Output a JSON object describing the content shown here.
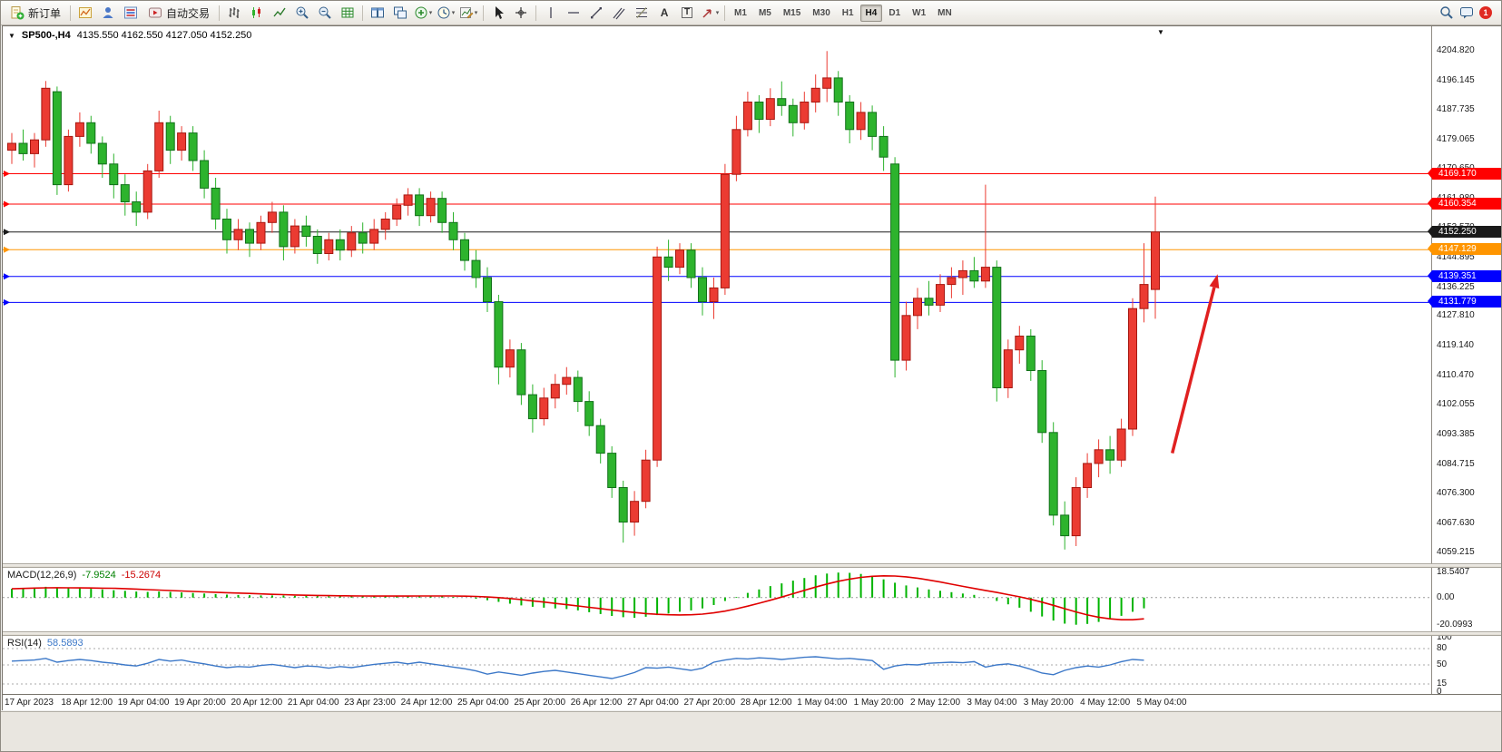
{
  "toolbar": {
    "new_order_label": "新订单",
    "auto_trading_label": "自动交易",
    "text_tool_glyph": "A",
    "label_tool_glyph": "T",
    "timeframes": [
      "M1",
      "M5",
      "M15",
      "M30",
      "H1",
      "H4",
      "D1",
      "W1",
      "MN"
    ],
    "active_timeframe": "H4",
    "notification_count": "1",
    "icon_names": [
      "new-order",
      "charts",
      "profiles",
      "market-watch",
      "auto-trading",
      "bar-chart",
      "candlestick-chart",
      "line-chart",
      "zoom-in",
      "zoom-out",
      "grid",
      "tile-windows",
      "cascade-windows",
      "indicators",
      "periods",
      "templates",
      "cursor",
      "crosshair",
      "vertical-line",
      "horizontal-line",
      "trendline",
      "equidistant-channel",
      "fibonacci",
      "text",
      "text-label",
      "arrows",
      "search",
      "chat",
      "notifications"
    ]
  },
  "chart": {
    "title": "SP500-,H4",
    "ohlc_text": "4135.550 4162.550 4127.050 4152.250",
    "y_ticks": [
      "4204.820",
      "4196.145",
      "4187.735",
      "4179.065",
      "4170.650",
      "4161.980",
      "4153.570",
      "4144.895",
      "4136.225",
      "4127.810",
      "4119.140",
      "4110.470",
      "4102.055",
      "4093.385",
      "4084.715",
      "4076.300",
      "4067.630",
      "4059.215"
    ],
    "hlines": [
      {
        "price": 4169.17,
        "label": "4169.170",
        "color": "#ff0000"
      },
      {
        "price": 4160.354,
        "label": "4160.354",
        "color": "#ff0000"
      },
      {
        "price": 4147.129,
        "label": "4147.129",
        "color": "#ff9500"
      },
      {
        "price": 4139.351,
        "label": "4139.351",
        "color": "#0000ff"
      },
      {
        "price": 4131.779,
        "label": "4131.779",
        "color": "#0000ff"
      }
    ],
    "current_price_line": {
      "price": 4152.25,
      "label": "4152.250",
      "color": "#1a1a1a"
    },
    "arrow": {
      "from_index": 102.5,
      "from_price": 4088,
      "to_index": 106.5,
      "to_price": 4140,
      "color": "#e02020"
    },
    "time_labels": [
      "17 Apr 2023",
      "18 Apr 12:00",
      "19 Apr 04:00",
      "19 Apr 20:00",
      "20 Apr 12:00",
      "21 Apr 04:00",
      "23 Apr 23:00",
      "24 Apr 12:00",
      "25 Apr 04:00",
      "25 Apr 20:00",
      "26 Apr 12:00",
      "27 Apr 04:00",
      "27 Apr 20:00",
      "28 Apr 12:00",
      "1 May 04:00",
      "1 May 20:00",
      "2 May 12:00",
      "3 May 04:00",
      "3 May 20:00",
      "4 May 12:00",
      "5 May 04:00"
    ]
  },
  "indicators": {
    "macd": {
      "name": "MACD(12,26,9)",
      "value_main": "-7.9524",
      "value_signal": "-15.2674"
    },
    "rsi": {
      "name": "RSI(14)",
      "value": "58.5893"
    }
  },
  "chart_data": {
    "main": {
      "type": "candlestick",
      "symbol": "SP500-",
      "timeframe": "H4",
      "ylim": [
        4056,
        4212
      ],
      "bull_color": "#eb3b32",
      "bear_color": "#2db32d",
      "bull_border": "#a61710",
      "bear_border": "#12701a",
      "ohlc": [
        [
          4176,
          4181,
          4172,
          4178
        ],
        [
          4178,
          4182,
          4173,
          4175
        ],
        [
          4175,
          4181,
          4171,
          4179
        ],
        [
          4179,
          4196.1,
          4177,
          4194
        ],
        [
          4193,
          4194.5,
          4163,
          4166
        ],
        [
          4166,
          4182,
          4164,
          4180
        ],
        [
          4180,
          4187,
          4177,
          4184
        ],
        [
          4184,
          4186,
          4175,
          4178
        ],
        [
          4178,
          4180,
          4168,
          4172
        ],
        [
          4172,
          4175,
          4162,
          4166
        ],
        [
          4166,
          4169,
          4157,
          4161
        ],
        [
          4161,
          4164,
          4154,
          4158
        ],
        [
          4158,
          4172,
          4156,
          4170
        ],
        [
          4170,
          4187.5,
          4168,
          4184
        ],
        [
          4184,
          4186,
          4172,
          4176
        ],
        [
          4176,
          4183,
          4173,
          4181
        ],
        [
          4181,
          4183,
          4170,
          4173
        ],
        [
          4173,
          4176,
          4162,
          4165
        ],
        [
          4165,
          4168,
          4153,
          4156
        ],
        [
          4156,
          4159,
          4146,
          4150
        ],
        [
          4150,
          4156,
          4147,
          4153
        ],
        [
          4153,
          4155,
          4145,
          4149
        ],
        [
          4149,
          4157,
          4147,
          4155
        ],
        [
          4155,
          4161,
          4152,
          4158
        ],
        [
          4158,
          4160,
          4144,
          4148
        ],
        [
          4148,
          4156,
          4146,
          4154
        ],
        [
          4154,
          4157,
          4148,
          4151
        ],
        [
          4151,
          4153,
          4143,
          4146
        ],
        [
          4146,
          4152,
          4144,
          4150
        ],
        [
          4150,
          4153,
          4144,
          4147
        ],
        [
          4147,
          4154,
          4145,
          4152
        ],
        [
          4152,
          4155,
          4146,
          4149
        ],
        [
          4149,
          4156,
          4147,
          4153
        ],
        [
          4153,
          4158,
          4150,
          4156
        ],
        [
          4156,
          4162,
          4154,
          4160
        ],
        [
          4160,
          4165,
          4157,
          4163
        ],
        [
          4163,
          4165,
          4154,
          4157
        ],
        [
          4157,
          4164,
          4155,
          4162
        ],
        [
          4162,
          4164,
          4152,
          4155
        ],
        [
          4155,
          4158,
          4147,
          4150
        ],
        [
          4150,
          4152,
          4141,
          4144
        ],
        [
          4144,
          4147,
          4136,
          4139
        ],
        [
          4139,
          4142,
          4129,
          4132
        ],
        [
          4132,
          4134,
          4108,
          4113
        ],
        [
          4113,
          4121,
          4110,
          4118
        ],
        [
          4118,
          4120,
          4102,
          4105
        ],
        [
          4105,
          4108,
          4094,
          4098
        ],
        [
          4098,
          4107,
          4096,
          4104
        ],
        [
          4104,
          4111,
          4101,
          4108
        ],
        [
          4108,
          4113,
          4105,
          4110
        ],
        [
          4110,
          4112,
          4100,
          4103
        ],
        [
          4103,
          4106,
          4093,
          4096
        ],
        [
          4096,
          4098,
          4085,
          4088
        ],
        [
          4088,
          4090,
          4075,
          4078
        ],
        [
          4078,
          4080,
          4062,
          4068
        ],
        [
          4068,
          4077,
          4064,
          4074
        ],
        [
          4074,
          4089,
          4072,
          4086
        ],
        [
          4086,
          4148,
          4084,
          4145
        ],
        [
          4145,
          4150,
          4138,
          4142
        ],
        [
          4142,
          4149,
          4140,
          4147
        ],
        [
          4147,
          4149,
          4136,
          4139
        ],
        [
          4139,
          4142,
          4128,
          4132
        ],
        [
          4132,
          4139,
          4127,
          4136
        ],
        [
          4136,
          4172,
          4134,
          4169
        ],
        [
          4169,
          4186,
          4167,
          4182
        ],
        [
          4182,
          4193,
          4180,
          4190
        ],
        [
          4190,
          4192,
          4181,
          4185
        ],
        [
          4185,
          4194,
          4183,
          4191
        ],
        [
          4191,
          4196,
          4186,
          4189
        ],
        [
          4189,
          4191,
          4180,
          4184
        ],
        [
          4184,
          4193,
          4182,
          4190
        ],
        [
          4190,
          4198,
          4187,
          4194
        ],
        [
          4194,
          4204.8,
          4190,
          4197
        ],
        [
          4197,
          4199,
          4186,
          4190
        ],
        [
          4190,
          4192,
          4178,
          4182
        ],
        [
          4182,
          4190,
          4179,
          4187
        ],
        [
          4187,
          4189,
          4176,
          4180
        ],
        [
          4180,
          4183,
          4170,
          4174
        ],
        [
          4172,
          4174,
          4110,
          4115
        ],
        [
          4115,
          4132,
          4112,
          4128
        ],
        [
          4128,
          4136,
          4124,
          4133
        ],
        [
          4133,
          4138,
          4128,
          4131
        ],
        [
          4131,
          4140,
          4129,
          4137
        ],
        [
          4137,
          4142,
          4133,
          4139
        ],
        [
          4139,
          4144,
          4134,
          4141
        ],
        [
          4141,
          4145,
          4136,
          4138
        ],
        [
          4138,
          4166,
          4136,
          4142
        ],
        [
          4142,
          4144,
          4103,
          4107
        ],
        [
          4107,
          4121,
          4104,
          4118
        ],
        [
          4118,
          4125,
          4114,
          4122
        ],
        [
          4122,
          4124,
          4109,
          4112
        ],
        [
          4112,
          4115,
          4091,
          4094
        ],
        [
          4094,
          4097,
          4067,
          4070
        ],
        [
          4070,
          4074,
          4060,
          4064
        ],
        [
          4064,
          4081,
          4061,
          4078
        ],
        [
          4078,
          4088,
          4075,
          4085
        ],
        [
          4085,
          4092,
          4081,
          4089
        ],
        [
          4089,
          4093,
          4082,
          4086
        ],
        [
          4086,
          4098,
          4084,
          4095
        ],
        [
          4095,
          4133,
          4093,
          4130
        ],
        [
          4130,
          4149,
          4126,
          4137
        ],
        [
          4135.55,
          4162.55,
          4127.05,
          4152.25
        ]
      ]
    },
    "macd": {
      "type": "bar",
      "name": "MACD(12,26,9)",
      "ylim": [
        -25,
        22
      ],
      "y_ticks": [
        "18.5407",
        "0.00",
        "-20.0993"
      ],
      "hist_color": "#00b400",
      "signal_color": "#e00000",
      "values": [
        6.5,
        7,
        7.5,
        8,
        7.5,
        7,
        6.8,
        6.5,
        6,
        5.5,
        5,
        4.5,
        4.2,
        4.5,
        4.2,
        3.8,
        3.4,
        3,
        2.6,
        2.2,
        1.9,
        1.7,
        1.6,
        1.6,
        1.5,
        1.3,
        1.2,
        1.1,
        1,
        0.9,
        0.9,
        1,
        1.1,
        1.3,
        1.5,
        1.5,
        1.4,
        1.2,
        0.9,
        0.5,
        0,
        -0.8,
        -2,
        -3.2,
        -4.5,
        -5.8,
        -6.8,
        -7.5,
        -8,
        -8.5,
        -9.5,
        -10.8,
        -12.2,
        -13.6,
        -14.5,
        -15,
        -14.2,
        -13,
        -11.8,
        -10.5,
        -9.5,
        -8,
        -5.5,
        -2.5,
        0.5,
        3.5,
        6,
        8.5,
        10.5,
        12.5,
        14.5,
        16.5,
        17.8,
        18.5,
        18.3,
        17.5,
        16,
        13.5,
        11,
        9,
        7.5,
        6,
        5,
        4,
        3,
        2,
        0,
        -2.5,
        -5,
        -7.5,
        -10.5,
        -14,
        -17,
        -19.3,
        -20.1,
        -19.5,
        -18,
        -16,
        -13.5,
        -10.5,
        -7.95
      ]
    },
    "rsi": {
      "type": "line",
      "name": "RSI(14)",
      "ylim": [
        0,
        100
      ],
      "levels": [
        80,
        50,
        15
      ],
      "y_ticks": [
        "100",
        "80",
        "50",
        "15",
        "0"
      ],
      "line_color": "#3c78c8",
      "values": [
        57,
        58,
        59,
        62,
        55,
        58,
        60,
        58,
        55,
        53,
        50,
        48,
        53,
        60,
        57,
        59,
        55,
        52,
        48,
        45,
        47,
        46,
        49,
        51,
        48,
        45,
        48,
        47,
        44,
        47,
        45,
        48,
        51,
        53,
        55,
        52,
        55,
        52,
        49,
        46,
        43,
        39,
        33,
        37,
        34,
        31,
        35,
        38,
        40,
        37,
        34,
        31,
        28,
        25,
        30,
        36,
        45,
        44,
        46,
        43,
        40,
        44,
        55,
        59,
        62,
        61,
        63,
        62,
        60,
        62,
        64,
        65,
        63,
        61,
        62,
        60,
        58,
        42,
        48,
        51,
        50,
        53,
        54,
        55,
        54,
        56,
        46,
        50,
        52,
        48,
        42,
        35,
        32,
        40,
        45,
        48,
        46,
        50,
        56,
        60,
        58.59
      ]
    }
  },
  "colors": {
    "bull": "#eb3b32",
    "bear": "#2db32d",
    "line_red": "#ff0000",
    "line_orange": "#ff9500",
    "line_blue": "#0000ff",
    "price_line": "#1a1a1a",
    "macd_hist": "#00b400",
    "macd_signal": "#e00000",
    "rsi_line": "#3c78c8",
    "arrow": "#e02020"
  }
}
